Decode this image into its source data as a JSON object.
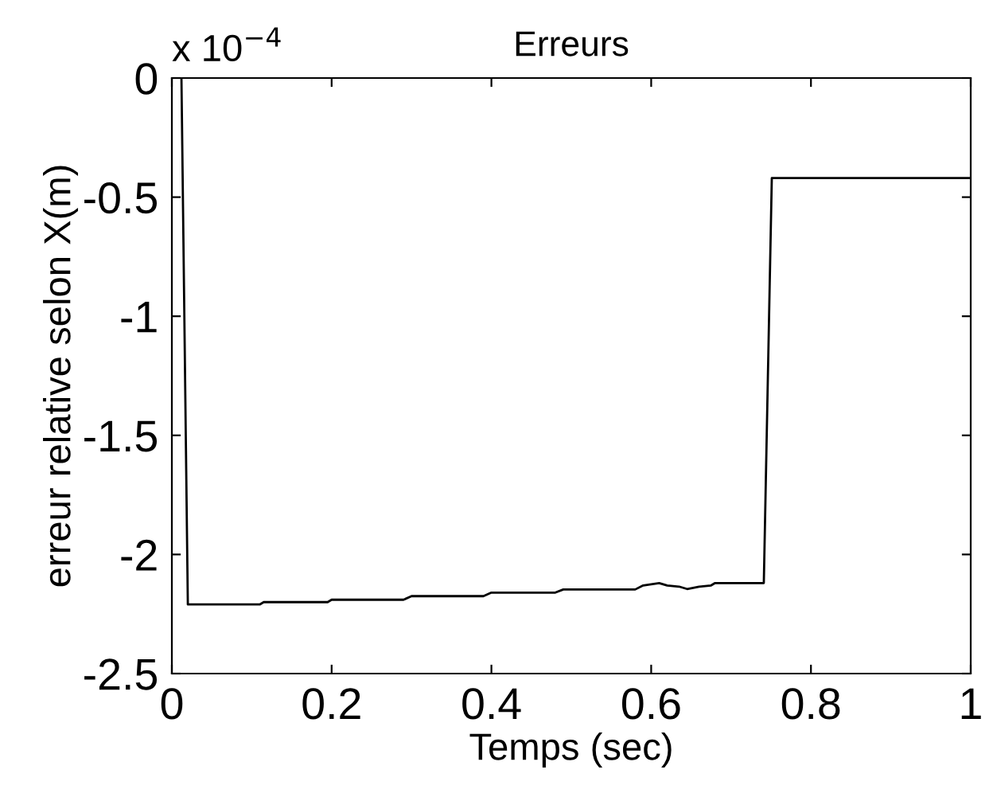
{
  "chart_data": {
    "type": "line",
    "title": "Erreurs",
    "xlabel": "Temps (sec)",
    "ylabel": "erreur relative selon X(m)",
    "annotations": [
      "x 10$^{−4}$"
    ],
    "x": [
      0.012,
      0.02,
      0.11,
      0.115,
      0.195,
      0.2,
      0.29,
      0.3,
      0.39,
      0.4,
      0.48,
      0.49,
      0.58,
      0.59,
      0.61,
      0.62,
      0.635,
      0.645,
      0.66,
      0.675,
      0.68,
      0.741,
      0.751,
      1.0
    ],
    "series": [
      {
        "color": "#000000",
        "values": [
          0,
          -2.21,
          -2.21,
          -2.2,
          -2.2,
          -2.19,
          -2.19,
          -2.175,
          -2.175,
          -2.16,
          -2.16,
          -2.147,
          -2.147,
          -2.13,
          -2.12,
          -2.13,
          -2.135,
          -2.145,
          -2.135,
          -2.13,
          -2.12,
          -2.12,
          -0.42,
          -0.42
        ]
      }
    ],
    "xlim": [
      0,
      1
    ],
    "xticks": [
      0,
      0.2,
      0.4,
      0.6,
      0.8,
      1
    ],
    "ylim": [
      -2.5,
      0
    ],
    "yticks": [
      0,
      -0.5,
      -1,
      -1.5,
      -2,
      -2.5
    ],
    "grid": false,
    "legend": false,
    "line_style": "solid",
    "marker": "none"
  }
}
